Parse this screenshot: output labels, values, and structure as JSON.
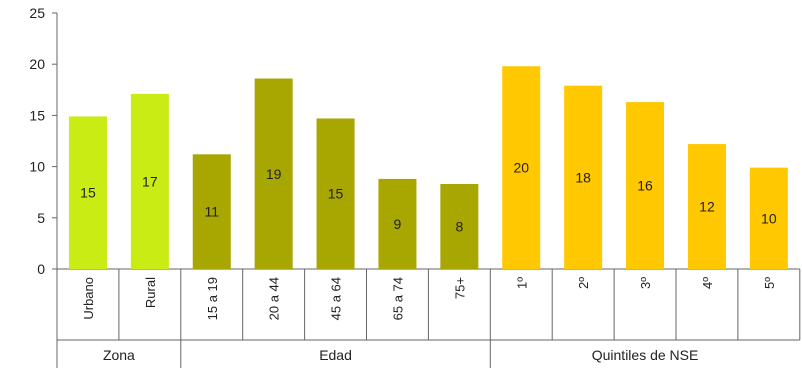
{
  "chart_data": {
    "type": "bar",
    "ylim": [
      0,
      25
    ],
    "yticks": [
      "0",
      "5",
      "10",
      "15",
      "20",
      "25"
    ],
    "grid": false,
    "categories": [
      "Urbano",
      "Rural",
      "15 a 19",
      "20 a 44",
      "45 a 64",
      "65 a 74",
      "75+",
      "1º",
      "2º",
      "3º",
      "4º",
      "5º"
    ],
    "values": [
      14.9,
      17.1,
      11.2,
      18.6,
      14.7,
      8.8,
      8.3,
      19.8,
      17.9,
      16.3,
      12.2,
      9.9
    ],
    "value_labels": [
      "15",
      "17",
      "11",
      "19",
      "15",
      "9",
      "8",
      "20",
      "18",
      "16",
      "12",
      "10"
    ],
    "groups": [
      {
        "name": "Zona",
        "count": 2,
        "color": "#c8ec14"
      },
      {
        "name": "Edad",
        "count": 5,
        "color": "#a8a600"
      },
      {
        "name": "Quintiles de NSE",
        "count": 5,
        "color": "#ffc800"
      }
    ]
  }
}
